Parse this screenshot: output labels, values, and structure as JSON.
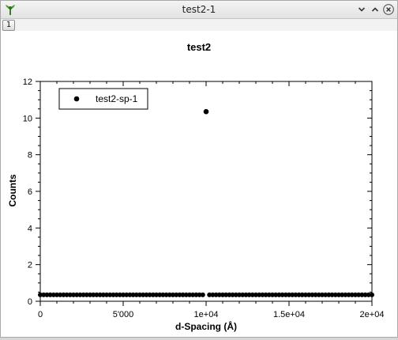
{
  "window": {
    "title": "test2-1",
    "icon": "app-logo-icon",
    "controls": [
      "chevron-down-icon",
      "chevron-up-icon",
      "close-icon"
    ]
  },
  "tabs": [
    {
      "label": "1",
      "active": true
    }
  ],
  "chart_data": {
    "type": "scatter",
    "title": "test2",
    "xlabel": "d-Spacing (Å)",
    "ylabel": "Counts",
    "xlim": [
      0,
      20000
    ],
    "ylim": [
      0,
      12
    ],
    "x_ticks": [
      {
        "value": 0,
        "label": "0"
      },
      {
        "value": 5000,
        "label": "5'000"
      },
      {
        "value": 10000,
        "label": "1e+04"
      },
      {
        "value": 15000,
        "label": "1.5e+04"
      },
      {
        "value": 20000,
        "label": "2e+04"
      }
    ],
    "y_ticks": [
      {
        "value": 0,
        "label": "0"
      },
      {
        "value": 2,
        "label": "2"
      },
      {
        "value": 4,
        "label": "4"
      },
      {
        "value": 6,
        "label": "6"
      },
      {
        "value": 8,
        "label": "8"
      },
      {
        "value": 10,
        "label": "10"
      },
      {
        "value": 12,
        "label": "12"
      }
    ],
    "legend": {
      "position": "top-left",
      "boxed": true
    },
    "grid": false,
    "series": [
      {
        "name": "test2-sp-1",
        "marker": "circle",
        "color": "#000000",
        "baseline": {
          "x_start": 0,
          "x_end": 20000,
          "step": 200,
          "y": 0.35,
          "skip_x": [
            10000
          ]
        },
        "points": [
          {
            "x": 10000,
            "y": 10.35
          }
        ]
      }
    ]
  }
}
